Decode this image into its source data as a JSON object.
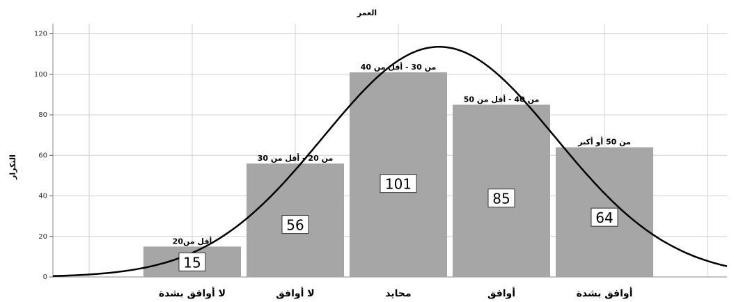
{
  "chart_data": {
    "type": "bar",
    "title": "العمر",
    "ylabel": "التكرار",
    "xlabel": "",
    "ylim": [
      0,
      125
    ],
    "yticks": [
      0,
      20,
      40,
      60,
      80,
      100,
      120
    ],
    "grid": true,
    "categories": [
      "لا أوافق بشدة",
      "لا أوافق",
      "محايد",
      "أوافق",
      "أوافق بشدة"
    ],
    "bar_labels": [
      "أقل من20",
      "من 20 - أقل من 30",
      "من 30 - أقل من 40",
      "من 40 - أقل من 50",
      "من 50 أو أكبر"
    ],
    "values": [
      15,
      56,
      101,
      85,
      64
    ],
    "bar_color": "#a6a6a6",
    "curve_color": "#000000",
    "normal_curve": true
  }
}
